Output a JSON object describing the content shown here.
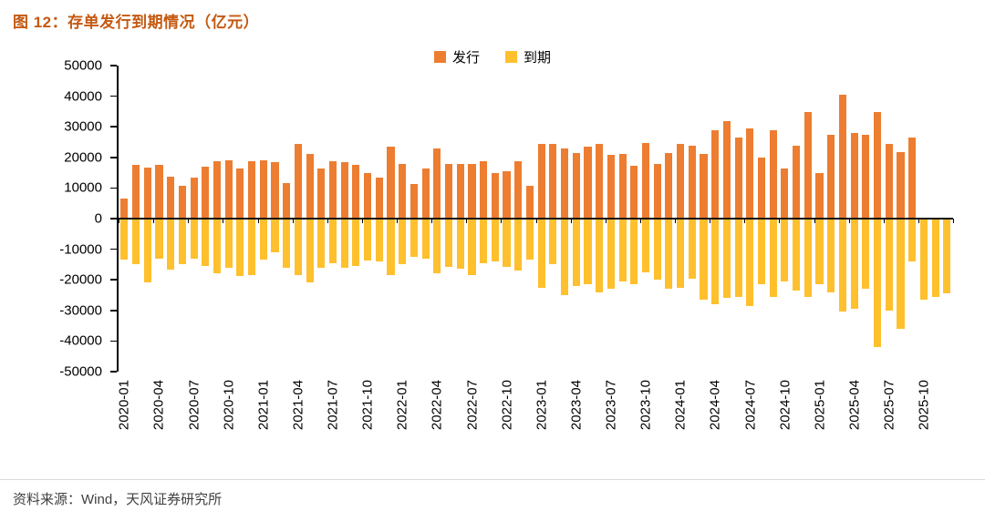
{
  "header": {
    "title": "图 12：存单发行到期情况（亿元）"
  },
  "footer": {
    "source": "资料来源：Wind，天风证券研究所"
  },
  "colors": {
    "title": "#C45911",
    "issuance": "#ED7D31",
    "maturity": "#FFC02E",
    "axis": "#000000",
    "source_text": "#3F3F3F",
    "divider": "#D9D9D9"
  },
  "chart_data": {
    "type": "bar",
    "title": "存单发行到期情况（亿元）",
    "xlabel": "",
    "ylabel": "",
    "ylim": [
      -50000,
      50000
    ],
    "ytick_step": 10000,
    "xtick_every": 3,
    "grid": false,
    "legend_position": "top",
    "categories": [
      "2020-01",
      "2020-02",
      "2020-03",
      "2020-04",
      "2020-05",
      "2020-06",
      "2020-07",
      "2020-08",
      "2020-09",
      "2020-10",
      "2020-11",
      "2020-12",
      "2021-01",
      "2021-02",
      "2021-03",
      "2021-04",
      "2021-05",
      "2021-06",
      "2021-07",
      "2021-08",
      "2021-09",
      "2021-10",
      "2021-11",
      "2021-12",
      "2022-01",
      "2022-02",
      "2022-03",
      "2022-04",
      "2022-05",
      "2022-06",
      "2022-07",
      "2022-08",
      "2022-09",
      "2022-10",
      "2022-11",
      "2022-12",
      "2023-01",
      "2023-02",
      "2023-03",
      "2023-04",
      "2023-05",
      "2023-06",
      "2023-07",
      "2023-08",
      "2023-09",
      "2023-10",
      "2023-11",
      "2023-12",
      "2024-01",
      "2024-02",
      "2024-03",
      "2024-04",
      "2024-05",
      "2024-06",
      "2024-07",
      "2024-08",
      "2024-09",
      "2024-10",
      "2024-11",
      "2024-12",
      "2025-01",
      "2025-02",
      "2025-03",
      "2025-04",
      "2025-05",
      "2025-06",
      "2025-07",
      "2025-08",
      "2025-09",
      "2025-10",
      "2025-11",
      "2025-12"
    ],
    "series": [
      {
        "name": "发行",
        "color": "#ED7D31",
        "values": [
          6500,
          17500,
          16800,
          17500,
          13800,
          10800,
          13300,
          17000,
          18800,
          19000,
          16500,
          18700,
          19200,
          18500,
          11500,
          24500,
          21000,
          16500,
          18800,
          18500,
          17600,
          15000,
          13500,
          23500,
          17800,
          11200,
          16500,
          22800,
          17800,
          17800,
          17800,
          18700,
          14800,
          15500,
          18700,
          10700,
          24500,
          24300,
          23000,
          21500,
          23500,
          24300,
          20800,
          21000,
          17300,
          24800,
          18000,
          21500,
          24500,
          23800,
          21000,
          29000,
          31800,
          26500,
          29500,
          20000,
          28800,
          16300,
          23800,
          34700,
          14800,
          27500,
          40500,
          28000,
          27300,
          34700,
          24500,
          21800,
          26500,
          null,
          null,
          null
        ]
      },
      {
        "name": "到期",
        "color": "#FFC02E",
        "values": [
          -13500,
          -15000,
          -20800,
          -13000,
          -16800,
          -15000,
          -13000,
          -15500,
          -18000,
          -16000,
          -18800,
          -18500,
          -13500,
          -11000,
          -16000,
          -18500,
          -20800,
          -16000,
          -14500,
          -16200,
          -15500,
          -13800,
          -14000,
          -18500,
          -15000,
          -12500,
          -13000,
          -17800,
          -15800,
          -16500,
          -18500,
          -14500,
          -14000,
          -15800,
          -17000,
          -13500,
          -22500,
          -15000,
          -25000,
          -22000,
          -21500,
          -24000,
          -23000,
          -20500,
          -21500,
          -17500,
          -20000,
          -23000,
          -22500,
          -19500,
          -26500,
          -28000,
          -26000,
          -25500,
          -28500,
          -21500,
          -25500,
          -20500,
          -23500,
          -25500,
          -21500,
          -24000,
          -30500,
          -29500,
          -23000,
          -42000,
          -30000,
          -36000,
          -14000,
          -26500,
          -25500,
          -24500
        ]
      }
    ]
  }
}
